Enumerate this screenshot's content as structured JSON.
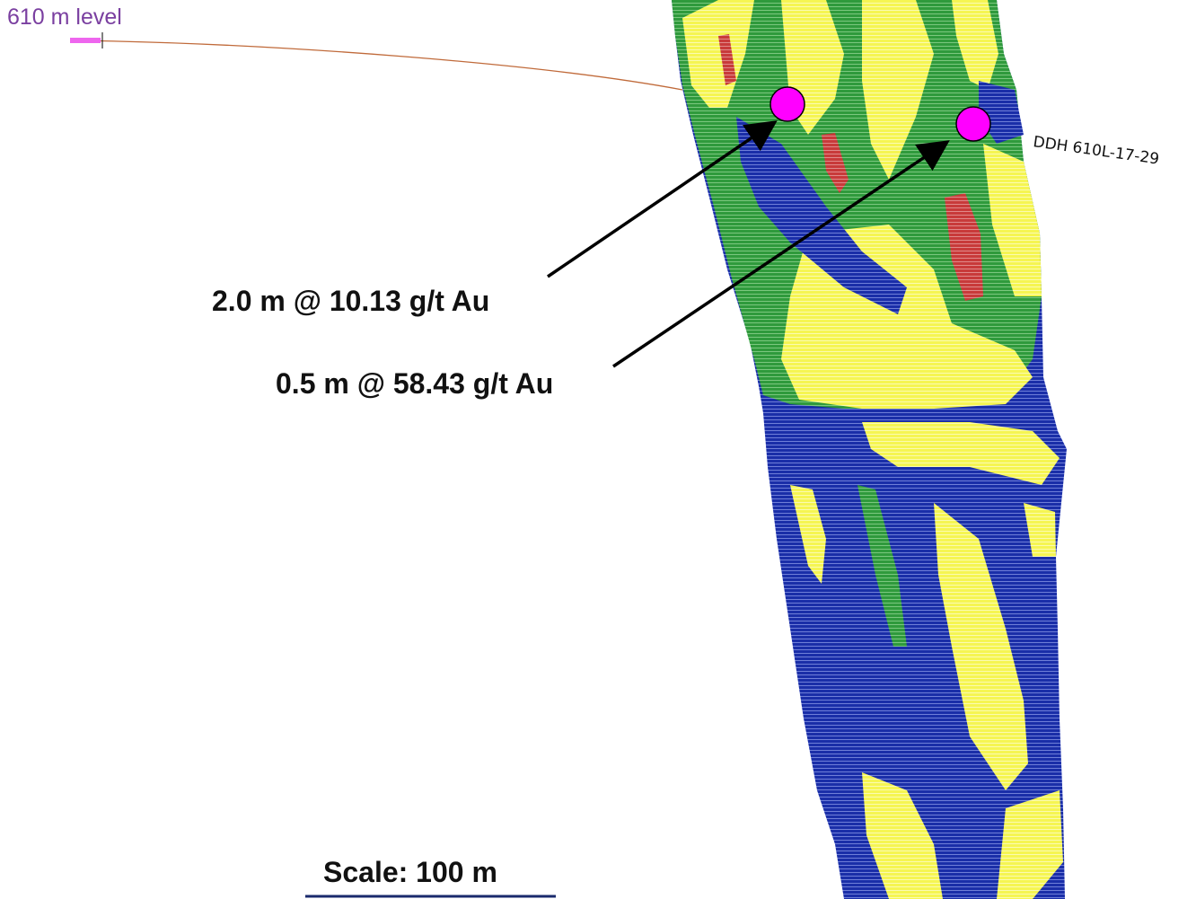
{
  "level_label": "610 m level",
  "drill_hole": {
    "label": "DDH 610L-17-29"
  },
  "intercepts": [
    {
      "text": "2.0 m @ 10.13 g/t Au"
    },
    {
      "text": "0.5 m @ 58.43 g/t Au"
    }
  ],
  "scale_text": "Scale: 100 m",
  "colors": {
    "block_blue": "#1a2ea8",
    "block_yellow": "#f5f552",
    "block_green": "#2f9a3c",
    "block_red": "#c83a3a",
    "intercept_marker": "#ff00ff",
    "drift_trace": "#c06a3a",
    "level_label": "#7a3fa0",
    "scale_bar": "#1a2a6c"
  }
}
